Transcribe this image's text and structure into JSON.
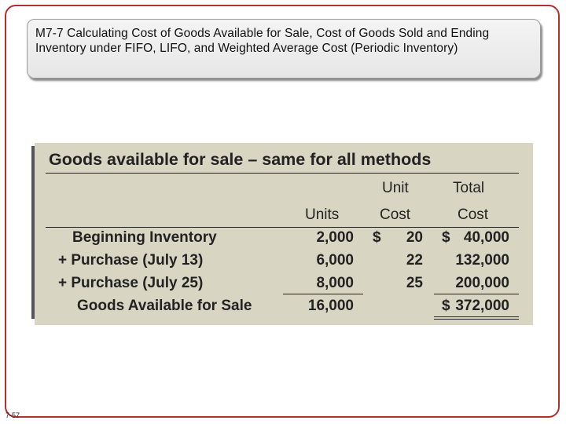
{
  "slide": {
    "title": "M7-7 Calculating Cost of Goods Available for Sale, Cost of Goods Sold and Ending Inventory under FIFO, LIFO, and Weighted Average Cost (Periodic Inventory)",
    "number": "7-57"
  },
  "table": {
    "heading": "Goods available for sale – same for all methods",
    "headers": {
      "unit_top": "Unit",
      "total_top": "Total",
      "units": "Units",
      "unit_cost": "Cost",
      "total_cost": "Cost"
    },
    "rows": [
      {
        "label": "Beginning Inventory",
        "units": "2,000",
        "currency_unit": "$",
        "unit_cost": "20",
        "currency_total": "$",
        "total": "40,000"
      },
      {
        "label": "+ Purchase (July 13)",
        "units": "6,000",
        "currency_unit": "",
        "unit_cost": "22",
        "currency_total": "",
        "total": "132,000"
      },
      {
        "label": "+ Purchase (July 25)",
        "units": "8,000",
        "currency_unit": "",
        "unit_cost": "25",
        "currency_total": "",
        "total": "200,000"
      }
    ],
    "total_row": {
      "label": "Goods Available for Sale",
      "units": "16,000",
      "currency_total": "$",
      "total": "372,000"
    }
  }
}
